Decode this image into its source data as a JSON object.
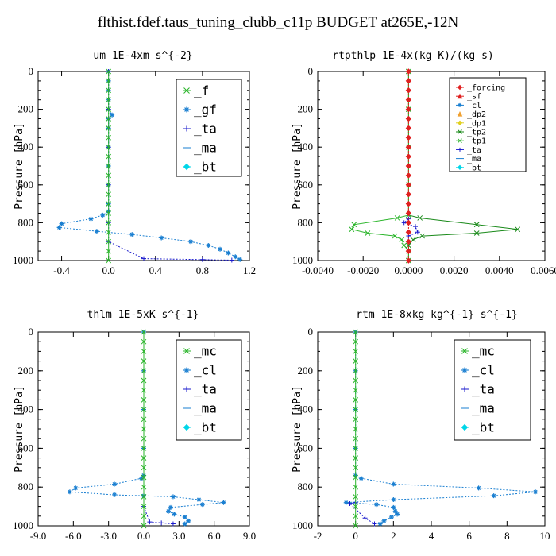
{
  "page_title": "flthist.fdef.taus_tuning_clubb_c11p  BUDGET at265E,-12N",
  "colors": {
    "green": "#2ab52a",
    "blue": "#1a7fd1",
    "red": "#e02020",
    "navy": "#1a1acc",
    "cyan": "#00d6e8",
    "orange": "#f0a030",
    "yellow": "#e0d020",
    "magenta": "#e040e0",
    "darkgreen": "#1a8a1a"
  },
  "chart_data": [
    {
      "type": "line",
      "title": "um  1E-4xm s^{-2}",
      "ylabel": "Pressure [hPa]",
      "xlim": [
        -0.6,
        1.2
      ],
      "ylim": [
        1000,
        0
      ],
      "xticks": [
        "-0.4",
        "0.0",
        "0.4",
        "0.8",
        "1.2"
      ],
      "xtick_values": [
        -0.4,
        0.0,
        0.4,
        0.8,
        1.2
      ],
      "yticks": [
        "0",
        "200",
        "400",
        "600",
        "800",
        "1000"
      ],
      "ytick_values": [
        0,
        200,
        400,
        600,
        800,
        1000
      ],
      "legend_position": "top-right",
      "legend_entries": [
        "_f",
        "_gf",
        "_ta",
        "_ma",
        "_bt"
      ],
      "series": [
        {
          "name": "_gf",
          "color": "#1a7fd1",
          "marker": "star",
          "points": [
            [
              0,
              0
            ],
            [
              0,
              50
            ],
            [
              0,
              100
            ],
            [
              0,
              150
            ],
            [
              0,
              200
            ],
            [
              0.03,
              230
            ],
            [
              0,
              250
            ],
            [
              0,
              300
            ],
            [
              0,
              400
            ],
            [
              0,
              500
            ],
            [
              0,
              600
            ],
            [
              0,
              700
            ],
            [
              0,
              740
            ],
            [
              -0.05,
              760
            ],
            [
              -0.15,
              780
            ],
            [
              -0.4,
              805
            ],
            [
              -0.42,
              825
            ],
            [
              -0.1,
              845
            ],
            [
              0.2,
              862
            ],
            [
              0.45,
              880
            ],
            [
              0.7,
              900
            ],
            [
              0.85,
              920
            ],
            [
              0.95,
              940
            ],
            [
              1.02,
              960
            ],
            [
              1.08,
              980
            ],
            [
              1.12,
              995
            ]
          ]
        },
        {
          "name": "_ta",
          "color": "#1a1acc",
          "marker": "plus",
          "points": [
            [
              0,
              0
            ],
            [
              0,
              200
            ],
            [
              0,
              400
            ],
            [
              0,
              600
            ],
            [
              0,
              800
            ],
            [
              0,
              900
            ],
            [
              0.3,
              990
            ],
            [
              0.8,
              995
            ],
            [
              1.05,
              998
            ]
          ]
        },
        {
          "name": "_f",
          "color": "#2ab52a",
          "marker": "x",
          "points": [
            [
              0,
              0
            ],
            [
              0,
              50
            ],
            [
              0,
              100
            ],
            [
              0,
              150
            ],
            [
              0,
              200
            ],
            [
              0,
              250
            ],
            [
              0,
              300
            ],
            [
              0,
              350
            ],
            [
              0,
              400
            ],
            [
              0,
              450
            ],
            [
              0,
              500
            ],
            [
              0,
              550
            ],
            [
              0,
              600
            ],
            [
              0,
              650
            ],
            [
              0,
              700
            ],
            [
              0,
              750
            ],
            [
              0,
              800
            ],
            [
              0,
              850
            ],
            [
              0,
              900
            ],
            [
              0,
              950
            ],
            [
              0,
              1000
            ]
          ]
        }
      ]
    },
    {
      "type": "line",
      "title": "rtpthlp  1E-4x(kg K)/(kg s)",
      "ylabel": "Pressure [hPa]",
      "xlim": [
        -0.004,
        0.006
      ],
      "ylim": [
        1000,
        0
      ],
      "xticks": [
        "-0.0040",
        "-0.0020",
        "0.0000",
        "0.0020",
        "0.0040",
        "0.0060"
      ],
      "xtick_values": [
        -0.004,
        -0.002,
        0.0,
        0.002,
        0.004,
        0.006
      ],
      "yticks": [
        "0",
        "200",
        "400",
        "600",
        "800",
        "1000"
      ],
      "ytick_values": [
        0,
        200,
        400,
        600,
        800,
        1000
      ],
      "legend_position": "top-right",
      "legend_entries": [
        "_forcing",
        "_sf",
        "_cl",
        "_dp2",
        "_dp1",
        "_tp2",
        "_tp1",
        "_ta",
        "_ma",
        "_bt"
      ],
      "series": [
        {
          "name": "_dp1",
          "color": "#1a8a1a",
          "marker": "x",
          "points": [
            [
              0,
              0
            ],
            [
              0,
              200
            ],
            [
              0,
              400
            ],
            [
              0,
              600
            ],
            [
              0,
              760
            ],
            [
              0.0005,
              775
            ],
            [
              0.003,
              810
            ],
            [
              0.0048,
              835
            ],
            [
              0.003,
              855
            ],
            [
              0.0006,
              870
            ],
            [
              0.0002,
              890
            ],
            [
              0,
              920
            ],
            [
              0,
              1000
            ]
          ]
        },
        {
          "name": "_tp2",
          "color": "#2ab52a",
          "marker": "x",
          "points": [
            [
              0,
              0
            ],
            [
              0,
              200
            ],
            [
              0,
              400
            ],
            [
              0,
              600
            ],
            [
              0,
              760
            ],
            [
              -0.0005,
              775
            ],
            [
              -0.0024,
              810
            ],
            [
              -0.0025,
              835
            ],
            [
              -0.0018,
              855
            ],
            [
              -0.0006,
              870
            ],
            [
              -0.0003,
              890
            ],
            [
              -0.0002,
              920
            ],
            [
              0,
              950
            ],
            [
              0,
              1000
            ]
          ]
        },
        {
          "name": "_ta",
          "color": "#1a1acc",
          "marker": "plus",
          "points": [
            [
              0,
              780
            ],
            [
              -0.0002,
              800
            ],
            [
              0.0003,
              820
            ],
            [
              0.0004,
              850
            ],
            [
              0,
              870
            ],
            [
              0,
              900
            ]
          ]
        },
        {
          "name": "_forcing",
          "color": "#e02020",
          "marker": "diamond",
          "points": [
            [
              0,
              0
            ],
            [
              0,
              50
            ],
            [
              0,
              100
            ],
            [
              0,
              150
            ],
            [
              0,
              200
            ],
            [
              0,
              250
            ],
            [
              0,
              300
            ],
            [
              0,
              350
            ],
            [
              0,
              400
            ],
            [
              0,
              450
            ],
            [
              0,
              500
            ],
            [
              0,
              550
            ],
            [
              0,
              600
            ],
            [
              0,
              650
            ],
            [
              0,
              700
            ],
            [
              0,
              750
            ],
            [
              0,
              800
            ],
            [
              0,
              850
            ],
            [
              0,
              900
            ],
            [
              0,
              950
            ],
            [
              0,
              1000
            ]
          ]
        }
      ]
    },
    {
      "type": "line",
      "title": "thlm  1E-5xK s^{-1}",
      "ylabel": "Pressure [hPa]",
      "xlim": [
        -9.0,
        9.0
      ],
      "ylim": [
        1000,
        0
      ],
      "xticks": [
        "-9.0",
        "-6.0",
        "-3.0",
        "0.0",
        "3.0",
        "6.0",
        "9.0"
      ],
      "xtick_values": [
        -9,
        -6,
        -3,
        0,
        3,
        6,
        9
      ],
      "yticks": [
        "0",
        "200",
        "400",
        "600",
        "800",
        "1000"
      ],
      "ytick_values": [
        0,
        200,
        400,
        600,
        800,
        1000
      ],
      "legend_position": "top-right",
      "legend_entries": [
        "_mc",
        "_cl",
        "_ta",
        "_ma",
        "_bt"
      ],
      "series": [
        {
          "name": "_cl",
          "color": "#1a7fd1",
          "marker": "star",
          "points": [
            [
              0,
              0
            ],
            [
              0,
              200
            ],
            [
              0,
              400
            ],
            [
              0,
              600
            ],
            [
              0,
              740
            ],
            [
              -0.2,
              755
            ],
            [
              -2.5,
              785
            ],
            [
              -5.8,
              805
            ],
            [
              -6.3,
              825
            ],
            [
              -2.5,
              840
            ],
            [
              0,
              845
            ],
            [
              2.5,
              850
            ],
            [
              4.7,
              865
            ],
            [
              6.8,
              880
            ],
            [
              5,
              890
            ],
            [
              2.3,
              905
            ],
            [
              2.1,
              925
            ],
            [
              2.6,
              940
            ],
            [
              3.5,
              955
            ],
            [
              3.8,
              975
            ],
            [
              3.5,
              990
            ]
          ]
        },
        {
          "name": "_ta",
          "color": "#1a1acc",
          "marker": "plus",
          "points": [
            [
              0,
              900
            ],
            [
              0.5,
              980
            ],
            [
              1.5,
              985
            ],
            [
              2.5,
              990
            ]
          ]
        },
        {
          "name": "_mc",
          "color": "#2ab52a",
          "marker": "x",
          "points": [
            [
              0,
              0
            ],
            [
              0,
              50
            ],
            [
              0,
              100
            ],
            [
              0,
              150
            ],
            [
              0,
              200
            ],
            [
              0,
              250
            ],
            [
              0,
              300
            ],
            [
              0,
              350
            ],
            [
              0,
              400
            ],
            [
              0,
              450
            ],
            [
              0,
              500
            ],
            [
              0,
              550
            ],
            [
              0,
              600
            ],
            [
              0,
              650
            ],
            [
              0,
              700
            ],
            [
              0,
              750
            ],
            [
              0,
              800
            ],
            [
              0,
              850
            ],
            [
              0,
              900
            ],
            [
              0,
              950
            ],
            [
              0,
              1000
            ]
          ]
        }
      ]
    },
    {
      "type": "line",
      "title": "rtm  1E-8xkg kg^{-1} s^{-1}",
      "ylabel": "Pressure [hPa]",
      "xlim": [
        -2,
        10
      ],
      "ylim": [
        1000,
        0
      ],
      "xticks": [
        "-2",
        "0",
        "2",
        "4",
        "6",
        "8",
        "10"
      ],
      "xtick_values": [
        -2,
        0,
        2,
        4,
        6,
        8,
        10
      ],
      "yticks": [
        "0",
        "200",
        "400",
        "600",
        "800",
        "1000"
      ],
      "ytick_values": [
        0,
        200,
        400,
        600,
        800,
        1000
      ],
      "legend_position": "top-right",
      "legend_entries": [
        "_mc",
        "_cl",
        "_ta",
        "_ma",
        "_bt"
      ],
      "series": [
        {
          "name": "_cl",
          "color": "#1a7fd1",
          "marker": "star",
          "points": [
            [
              0,
              0
            ],
            [
              0,
              200
            ],
            [
              0,
              400
            ],
            [
              0,
              600
            ],
            [
              0,
              740
            ],
            [
              0.3,
              755
            ],
            [
              2,
              785
            ],
            [
              6.5,
              805
            ],
            [
              9.5,
              825
            ],
            [
              7.3,
              845
            ],
            [
              2,
              865
            ],
            [
              -0.5,
              880
            ],
            [
              1.1,
              890
            ],
            [
              2,
              905
            ],
            [
              2.1,
              925
            ],
            [
              2.2,
              940
            ],
            [
              1.9,
              955
            ],
            [
              1.5,
              975
            ],
            [
              1.3,
              990
            ]
          ]
        },
        {
          "name": "_ta",
          "color": "#1a1acc",
          "marker": "plus",
          "points": [
            [
              0,
              880
            ],
            [
              -0.3,
              885
            ],
            [
              0.5,
              960
            ],
            [
              1,
              990
            ]
          ]
        },
        {
          "name": "_mc",
          "color": "#2ab52a",
          "marker": "x",
          "points": [
            [
              0,
              0
            ],
            [
              0,
              50
            ],
            [
              0,
              100
            ],
            [
              0,
              150
            ],
            [
              0,
              200
            ],
            [
              0,
              250
            ],
            [
              0,
              300
            ],
            [
              0,
              350
            ],
            [
              0,
              400
            ],
            [
              0,
              450
            ],
            [
              0,
              500
            ],
            [
              0,
              550
            ],
            [
              0,
              600
            ],
            [
              0,
              650
            ],
            [
              0,
              700
            ],
            [
              0,
              750
            ],
            [
              0,
              800
            ],
            [
              0,
              850
            ],
            [
              0,
              900
            ],
            [
              0,
              950
            ],
            [
              0,
              1000
            ]
          ]
        }
      ]
    }
  ]
}
